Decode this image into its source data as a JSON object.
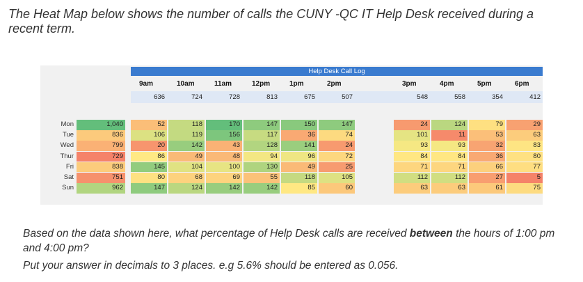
{
  "intro": "The Heat Map below shows the number of calls the CUNY -QC IT Help Desk received during a recent term.",
  "heatmap": {
    "title": "Help Desk Call Log",
    "hours": [
      "9am",
      "10am",
      "11am",
      "12pm",
      "1pm",
      "2pm",
      "",
      "3pm",
      "4pm",
      "5pm",
      "6pm"
    ],
    "hour_totals": [
      "636",
      "724",
      "728",
      "813",
      "675",
      "507",
      "",
      "548",
      "558",
      "354",
      "412"
    ],
    "days": [
      {
        "label": "Mon",
        "total": "1,040",
        "values": [
          "52",
          "118",
          "170",
          "147",
          "150",
          "147",
          "",
          "24",
          "124",
          "79",
          "29"
        ]
      },
      {
        "label": "Tue",
        "total": "836",
        "values": [
          "106",
          "119",
          "156",
          "117",
          "36",
          "74",
          "",
          "101",
          "11",
          "53",
          "63"
        ]
      },
      {
        "label": "Wed",
        "total": "799",
        "values": [
          "20",
          "142",
          "43",
          "128",
          "141",
          "24",
          "",
          "93",
          "93",
          "32",
          "83"
        ]
      },
      {
        "label": "Thur",
        "total": "729",
        "values": [
          "86",
          "49",
          "48",
          "94",
          "96",
          "72",
          "",
          "84",
          "84",
          "36",
          "80"
        ]
      },
      {
        "label": "Fri",
        "total": "838",
        "values": [
          "145",
          "104",
          "100",
          "130",
          "49",
          "25",
          "",
          "71",
          "71",
          "66",
          "77"
        ]
      },
      {
        "label": "Sat",
        "total": "751",
        "values": [
          "80",
          "68",
          "69",
          "55",
          "118",
          "105",
          "",
          "112",
          "112",
          "27",
          "5"
        ]
      },
      {
        "label": "Sun",
        "total": "962",
        "values": [
          "147",
          "124",
          "142",
          "142",
          "85",
          "60",
          "",
          "63",
          "63",
          "61",
          "75"
        ]
      }
    ]
  },
  "question": {
    "p1_before": "Based on the data shown here, what percentage of Help Desk calls are received ",
    "p1_bold": "between",
    "p1_after": " the hours of 1:00 pm and 4:00 pm?",
    "p2": "Put your answer in decimals to 3 places. e.g 5.6% should be entered as 0.056."
  }
}
